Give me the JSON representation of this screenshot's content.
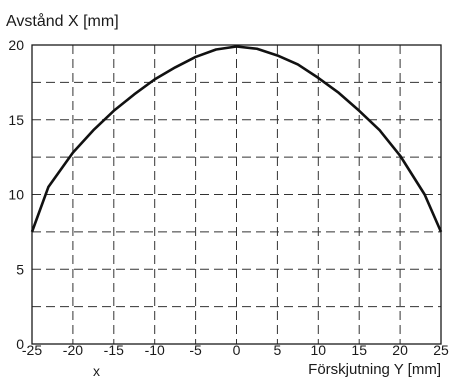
{
  "chart_data": {
    "type": "line",
    "ylabel": "Avstånd  X [mm]",
    "xlabel": "Förskjutning Y [mm]",
    "corner_label": "x",
    "xlim": [
      -25,
      25
    ],
    "ylim": [
      0,
      20
    ],
    "x_ticks": [
      -25,
      -20,
      -15,
      -10,
      -5,
      0,
      5,
      10,
      15,
      20,
      25
    ],
    "y_ticks": [
      0,
      5,
      10,
      15,
      20
    ],
    "grid": true,
    "series": [
      {
        "x": [
          -25,
          -23,
          -20,
          -17.5,
          -15,
          -12.5,
          -10,
          -7.5,
          -5,
          -2.5,
          0,
          2.5,
          5,
          7.5,
          10,
          12.5,
          15,
          17.5,
          20,
          23,
          25
        ],
        "y": [
          7.5,
          10.5,
          12.8,
          14.3,
          15.6,
          16.7,
          17.7,
          18.5,
          19.2,
          19.7,
          19.9,
          19.75,
          19.3,
          18.7,
          17.8,
          16.8,
          15.6,
          14.3,
          12.6,
          10,
          7.5
        ]
      }
    ]
  }
}
